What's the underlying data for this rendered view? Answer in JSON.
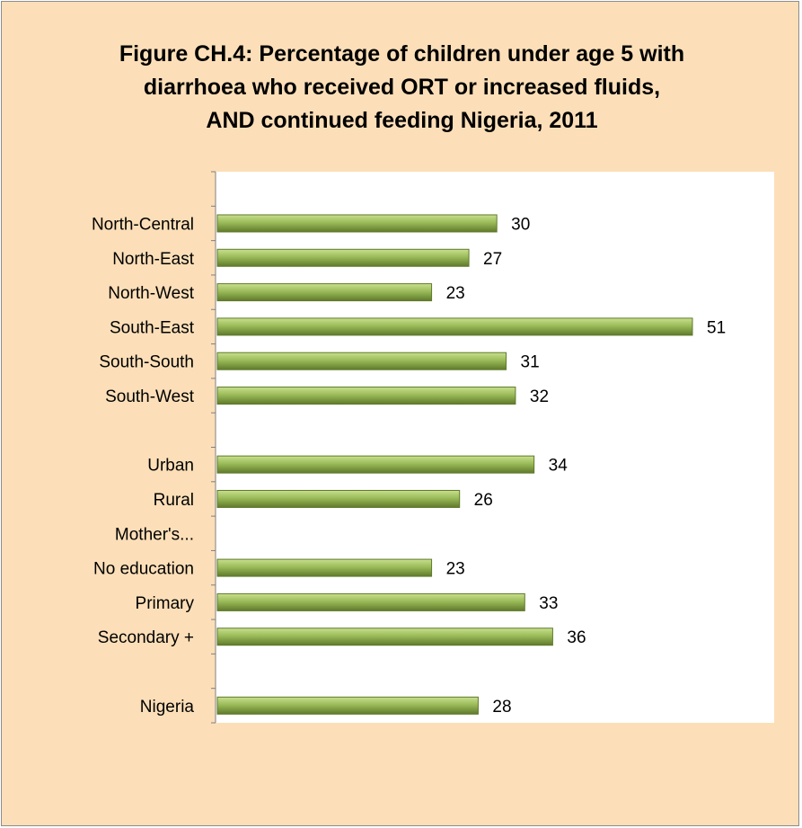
{
  "colors": {
    "background": "#FCDFB8",
    "plot_area": "#FFFFFF",
    "bar_fill": "#9BBB59",
    "bar_highlight": "#C9E08E",
    "bar_shadow": "#5F7A2B",
    "axis": "#7F7F7F"
  },
  "chart_data": {
    "type": "bar",
    "orientation": "horizontal",
    "title_lines": [
      "Figure CH.4: Percentage of children under age 5 with",
      "diarrhoea who received ORT or increased fluids,",
      "AND continued feeding Nigeria, 2011"
    ],
    "xlabel": "",
    "ylabel": "",
    "xlim": [
      0,
      60
    ],
    "grid": false,
    "legend": "none",
    "data_labels": true,
    "categories": [
      "",
      "North-Central",
      "North-East",
      "North-West",
      "South-East",
      "South-South",
      "South-West",
      "",
      "Urban",
      "Rural",
      "Mother's...",
      "No education",
      "Primary",
      "Secondary +",
      "",
      "Nigeria"
    ],
    "values": [
      null,
      30,
      27,
      23,
      51,
      31,
      32,
      null,
      34,
      26,
      null,
      23,
      33,
      36,
      null,
      28
    ]
  }
}
